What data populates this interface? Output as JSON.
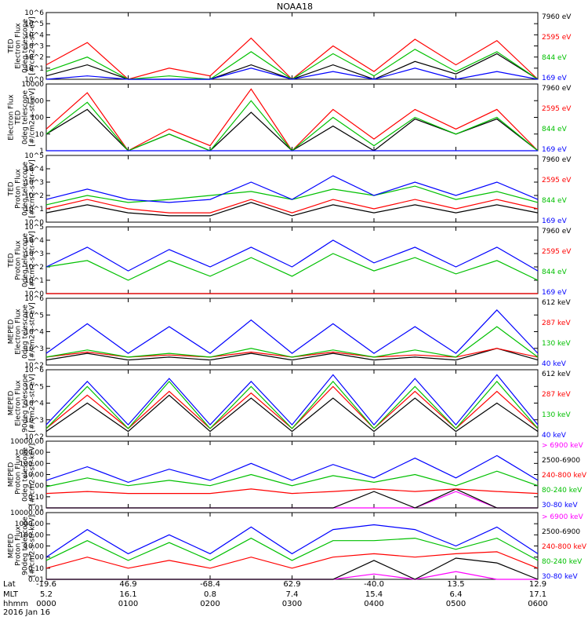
{
  "figure": {
    "title": "NOAA18",
    "footer_rows": [
      {
        "label": "Lat",
        "values": [
          "-19.6",
          "46.9",
          "-68.4",
          "62.9",
          "-40.0",
          "13.5",
          "12.9"
        ]
      },
      {
        "label": "MLT",
        "values": [
          "5.2",
          "16.1",
          "0.8",
          "7.4",
          "15.4",
          "6.4",
          "17.1"
        ]
      },
      {
        "label": "hhmm",
        "values": [
          "0000",
          "0100",
          "0200",
          "0300",
          "0400",
          "0500",
          "0600"
        ]
      }
    ],
    "date": "2016 Jan 16"
  },
  "chart_data": [
    {
      "type": "line",
      "ylabel": [
        "TED",
        "Electron Flux",
        "0deg telescope",
        "[#/cm2-s-str-eV]"
      ],
      "ylim": [
        1,
        1000000
      ],
      "yscale": "log",
      "yticks": [
        "10^0",
        "10^1",
        "10^2",
        "10^3",
        "10^4",
        "10^5",
        "10^6"
      ],
      "legend_placement": "right",
      "series": [
        {
          "name": "7960 eV",
          "color": "#000000"
        },
        {
          "name": "2595 eV",
          "color": "#ff0000"
        },
        {
          "name": "844 eV",
          "color": "#00c000"
        },
        {
          "name": "169 eV",
          "color": "#0000ff"
        }
      ],
      "x_hours": [
        0,
        0.5,
        1.0,
        1.5,
        2.0,
        2.5,
        3.0,
        3.5,
        4.0,
        4.5,
        5.0,
        5.5,
        6.0
      ],
      "values": [
        [
          2,
          20,
          1,
          1,
          1,
          20,
          1,
          20,
          1,
          40,
          3,
          200,
          1
        ],
        [
          20,
          2000,
          1,
          10,
          2,
          5000,
          1,
          1000,
          5,
          4000,
          20,
          3000,
          1
        ],
        [
          5,
          100,
          1,
          2,
          1,
          300,
          1,
          200,
          2,
          500,
          5,
          300,
          1
        ],
        [
          1,
          2,
          1,
          1,
          1,
          10,
          1,
          5,
          1,
          10,
          1,
          5,
          1
        ]
      ]
    },
    {
      "type": "line",
      "ylabel": [
        "Electron Flux",
        "TED",
        "0deg telescope",
        "[#/cm2-s-str-eV]"
      ],
      "ylim": [
        1,
        10000
      ],
      "yscale": "log",
      "yticks": [
        "1",
        "10",
        "100",
        "1000",
        "10000"
      ],
      "legend_placement": "right",
      "series": [
        {
          "name": "7960 eV",
          "color": "#000000"
        },
        {
          "name": "2595 eV",
          "color": "#ff0000"
        },
        {
          "name": "844 eV",
          "color": "#00c000"
        },
        {
          "name": "169 eV",
          "color": "#0000ff"
        }
      ],
      "x_hours": [
        0,
        0.5,
        1.0,
        1.5,
        2.0,
        2.5,
        3.0,
        3.5,
        4.0,
        4.5,
        5.0,
        5.5,
        6.0
      ],
      "values": [
        [
          10,
          300,
          1,
          10,
          1,
          200,
          1,
          30,
          1,
          80,
          10,
          80,
          1
        ],
        [
          20,
          3000,
          1,
          20,
          2,
          5000,
          1,
          300,
          5,
          300,
          20,
          300,
          1
        ],
        [
          10,
          800,
          1,
          10,
          1,
          1000,
          1,
          100,
          2,
          100,
          10,
          100,
          1
        ],
        [
          1,
          1,
          1,
          1,
          1,
          1,
          1,
          1,
          1,
          1,
          1,
          1,
          1
        ]
      ]
    },
    {
      "type": "line",
      "ylabel": [
        "TED",
        "Proton Flux",
        "0deg telescope",
        "[#/cm2-s-str-eV]"
      ],
      "ylim": [
        1,
        100000
      ],
      "yscale": "log",
      "yticks": [
        "10^0",
        "10^1",
        "10^2",
        "10^3",
        "10^4",
        "10^5"
      ],
      "legend_placement": "right",
      "series": [
        {
          "name": "7960 eV",
          "color": "#000000"
        },
        {
          "name": "2595 eV",
          "color": "#ff0000"
        },
        {
          "name": "844 eV",
          "color": "#00c000"
        },
        {
          "name": "169 eV",
          "color": "#0000ff"
        }
      ],
      "x_hours": [
        0,
        0.5,
        1.0,
        1.5,
        2.0,
        2.5,
        3.0,
        3.5,
        4.0,
        4.5,
        5.0,
        5.5,
        6.0
      ],
      "values": [
        [
          5,
          20,
          5,
          3,
          3,
          30,
          3,
          20,
          5,
          20,
          5,
          20,
          5
        ],
        [
          10,
          50,
          10,
          5,
          5,
          50,
          5,
          50,
          10,
          50,
          10,
          50,
          10
        ],
        [
          20,
          100,
          30,
          50,
          100,
          200,
          50,
          300,
          100,
          500,
          50,
          200,
          30
        ],
        [
          50,
          300,
          50,
          30,
          50,
          1000,
          50,
          3000,
          100,
          1000,
          100,
          1000,
          50
        ]
      ]
    },
    {
      "type": "line",
      "ylabel": [
        "TED",
        "Proton Flux",
        "0deg telescope",
        "[#/cm2-s-str-eV]"
      ],
      "ylim": [
        1,
        100000
      ],
      "yscale": "log",
      "yticks": [
        "10^0",
        "10^1",
        "10^2",
        "10^3",
        "10^4",
        "10^5"
      ],
      "legend_placement": "right",
      "series": [
        {
          "name": "7960 eV",
          "color": "#000000"
        },
        {
          "name": "2595 eV",
          "color": "#ff0000"
        },
        {
          "name": "844 eV",
          "color": "#00c000"
        },
        {
          "name": "169 eV",
          "color": "#0000ff"
        }
      ],
      "x_hours": [
        0,
        0.5,
        1.0,
        1.5,
        2.0,
        2.5,
        3.0,
        3.5,
        4.0,
        4.5,
        5.0,
        5.5,
        6.0
      ],
      "values": [
        [
          1,
          1,
          1,
          1,
          1,
          1,
          1,
          1,
          1,
          1,
          1,
          1,
          1
        ],
        [
          1,
          1,
          1,
          1,
          1,
          1,
          1,
          1,
          1,
          1,
          1,
          1,
          1
        ],
        [
          100,
          300,
          10,
          300,
          20,
          500,
          20,
          1000,
          50,
          500,
          30,
          300,
          10
        ],
        [
          100,
          3000,
          50,
          2000,
          100,
          3000,
          100,
          10000,
          200,
          3000,
          100,
          3000,
          50
        ]
      ]
    },
    {
      "type": "line",
      "ylabel": [
        "MEPED",
        "Electron Flux",
        "0deg telescope",
        "[#/cm2-s-str-eV]"
      ],
      "ylim": [
        100,
        1000000
      ],
      "yscale": "log",
      "yticks": [
        "10^2",
        "10^3",
        "10^4",
        "10^5",
        "10^6"
      ],
      "legend_placement": "right",
      "series": [
        {
          "name": "612 keV",
          "color": "#000000"
        },
        {
          "name": "287 keV",
          "color": "#ff0000"
        },
        {
          "name": "130 keV",
          "color": "#00c000"
        },
        {
          "name": "40 keV",
          "color": "#0000ff"
        }
      ],
      "x_hours": [
        0,
        0.5,
        1.0,
        1.5,
        2.0,
        2.5,
        3.0,
        3.5,
        4.0,
        4.5,
        5.0,
        5.5,
        6.0
      ],
      "values": [
        [
          200,
          500,
          200,
          300,
          200,
          500,
          200,
          500,
          200,
          300,
          200,
          1000,
          200
        ],
        [
          300,
          600,
          300,
          400,
          300,
          600,
          300,
          600,
          300,
          400,
          300,
          1000,
          300
        ],
        [
          300,
          800,
          300,
          500,
          300,
          1000,
          300,
          800,
          300,
          800,
          300,
          20000,
          300
        ],
        [
          500,
          30000,
          500,
          20000,
          500,
          50000,
          500,
          30000,
          500,
          20000,
          500,
          200000,
          500
        ]
      ]
    },
    {
      "type": "line",
      "ylabel": [
        "MEPED",
        "Electron Flux",
        "90deg telescope",
        "[#/cm2-s-str-eV]"
      ],
      "ylim": [
        100,
        1000000
      ],
      "yscale": "log",
      "yticks": [
        "10^2",
        "10^3",
        "10^4",
        "10^5",
        "10^6"
      ],
      "legend_placement": "right",
      "series": [
        {
          "name": "612 keV",
          "color": "#000000"
        },
        {
          "name": "287 keV",
          "color": "#ff0000"
        },
        {
          "name": "130 keV",
          "color": "#00c000"
        },
        {
          "name": "40 keV",
          "color": "#0000ff"
        }
      ],
      "x_hours": [
        0,
        0.5,
        1.0,
        1.5,
        2.0,
        2.5,
        3.0,
        3.5,
        4.0,
        4.5,
        5.0,
        5.5,
        6.0
      ],
      "values": [
        [
          200,
          10000,
          200,
          30000,
          200,
          20000,
          200,
          20000,
          200,
          20000,
          200,
          10000,
          200
        ],
        [
          300,
          30000,
          300,
          50000,
          300,
          40000,
          300,
          100000,
          300,
          50000,
          300,
          50000,
          300
        ],
        [
          300,
          100000,
          300,
          200000,
          300,
          100000,
          300,
          200000,
          300,
          100000,
          300,
          200000,
          300
        ],
        [
          500,
          200000,
          500,
          300000,
          500,
          200000,
          500,
          500000,
          500,
          300000,
          500,
          500000,
          500
        ]
      ]
    },
    {
      "type": "line",
      "ylabel": [
        "MEPED",
        "Proton Flux",
        "0deg telescope",
        "[#/cm2-s-str-keV]"
      ],
      "ylim": [
        0.01,
        10000
      ],
      "yscale": "log",
      "yticks": [
        "0.01",
        "0.10",
        "1.00",
        "10.00",
        "100.00",
        "1000.00",
        "10000.00"
      ],
      "legend_placement": "right",
      "series": [
        {
          "name": "> 6900 keV",
          "color": "#ff00ff"
        },
        {
          "name": "2500-6900",
          "color": "#000000"
        },
        {
          "name": "240-800 keV",
          "color": "#ff0000"
        },
        {
          "name": "80-240 keV",
          "color": "#00c000"
        },
        {
          "name": "30-80 keV",
          "color": "#0000ff"
        }
      ],
      "x_hours": [
        0,
        0.5,
        1.0,
        1.5,
        2.0,
        2.5,
        3.0,
        3.5,
        4.0,
        4.5,
        5.0,
        5.5,
        6.0
      ],
      "values": [
        [
          0.01,
          0.01,
          0.01,
          0.01,
          0.01,
          0.01,
          0.01,
          0.01,
          0.01,
          0.01,
          0.3,
          0.01,
          0.01
        ],
        [
          0.01,
          0.01,
          0.01,
          0.01,
          0.01,
          0.01,
          0.01,
          0.01,
          0.3,
          0.01,
          0.5,
          0.01,
          0.01
        ],
        [
          0.2,
          0.3,
          0.2,
          0.2,
          0.2,
          0.5,
          0.2,
          0.3,
          0.5,
          0.3,
          0.5,
          0.3,
          0.2
        ],
        [
          0.8,
          5,
          1,
          3,
          1,
          10,
          1,
          8,
          2,
          10,
          1,
          20,
          1
        ],
        [
          3,
          50,
          2,
          30,
          3,
          100,
          3,
          80,
          5,
          300,
          5,
          500,
          3
        ]
      ]
    },
    {
      "type": "line",
      "ylabel": [
        "MEPED",
        "Proton Flux",
        "90deg telescope",
        "[#/cm2-s-str-keV]"
      ],
      "ylim": [
        0.01,
        10000
      ],
      "yscale": "log",
      "yticks": [
        "0.01",
        "0.10",
        "1.00",
        "10.00",
        "100.00",
        "1000.00",
        "10000.00"
      ],
      "legend_placement": "right",
      "series": [
        {
          "name": "> 6900 keV",
          "color": "#ff00ff"
        },
        {
          "name": "2500-6900",
          "color": "#000000"
        },
        {
          "name": "240-800 keV",
          "color": "#ff0000"
        },
        {
          "name": "80-240 keV",
          "color": "#00c000"
        },
        {
          "name": "30-80 keV",
          "color": "#0000ff"
        }
      ],
      "x_hours": [
        0,
        0.5,
        1.0,
        1.5,
        2.0,
        2.5,
        3.0,
        3.5,
        4.0,
        4.5,
        5.0,
        5.5,
        6.0
      ],
      "values": [
        [
          0.01,
          0.01,
          0.01,
          0.01,
          0.01,
          0.01,
          0.01,
          0.01,
          0.03,
          0.01,
          0.05,
          0.01,
          0.01
        ],
        [
          0.01,
          0.01,
          0.01,
          0.01,
          0.01,
          0.01,
          0.01,
          0.01,
          0.5,
          0.01,
          0.8,
          0.3,
          0.01
        ],
        [
          0.1,
          1,
          0.1,
          0.5,
          0.1,
          1,
          0.1,
          1,
          2,
          1,
          2,
          3,
          0.1
        ],
        [
          0.5,
          30,
          0.5,
          20,
          0.5,
          50,
          0.5,
          30,
          30,
          50,
          5,
          50,
          0.5
        ],
        [
          1,
          300,
          2,
          100,
          2,
          500,
          2,
          300,
          800,
          300,
          10,
          500,
          2
        ]
      ]
    }
  ]
}
